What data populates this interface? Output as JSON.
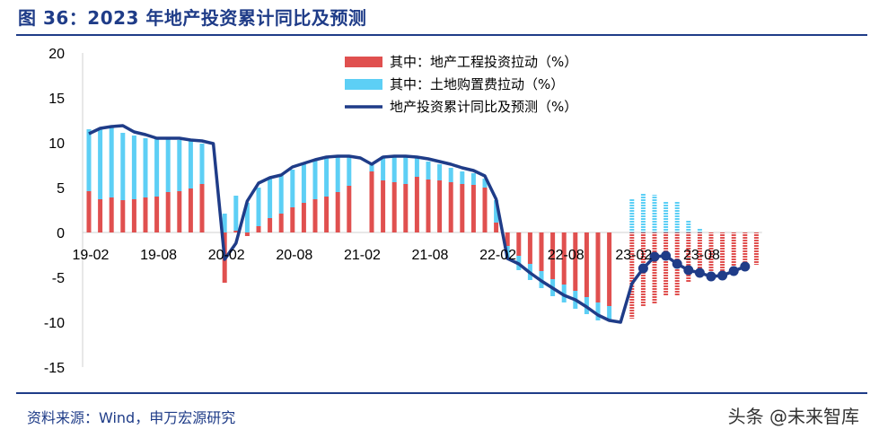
{
  "title": "图 36：2023 年地产投资累计同比及预测",
  "source": "资料来源：Wind，申万宏源研究",
  "watermark": "头条 @未来智库",
  "colors": {
    "construction": "#e0504f",
    "land": "#5dcff5",
    "line": "#1f3c88",
    "axis": "#d0d0d0"
  },
  "chart_data": {
    "type": "bar",
    "stacked": true,
    "ylim": [
      -15,
      20
    ],
    "yticks": [
      "20",
      "15",
      "10",
      "5",
      "0",
      "-5",
      "-10",
      "-15"
    ],
    "x_tick_labels": [
      {
        "label": "19-02",
        "index": 0
      },
      {
        "label": "19-08",
        "index": 6
      },
      {
        "label": "20-02",
        "index": 12
      },
      {
        "label": "20-08",
        "index": 18
      },
      {
        "label": "21-02",
        "index": 24
      },
      {
        "label": "21-08",
        "index": 30
      },
      {
        "label": "22-02",
        "index": 36
      },
      {
        "label": "22-08",
        "index": 42
      },
      {
        "label": "23-02",
        "index": 48
      },
      {
        "label": "23-08",
        "index": 54
      }
    ],
    "forecast_start_index": 48,
    "legend_position": "top-center",
    "series": [
      {
        "name": "其中：地产工程投资拉动（%）",
        "kind": "bar",
        "values": [
          4.6,
          3.7,
          3.9,
          3.6,
          3.7,
          3.9,
          4.0,
          4.5,
          4.6,
          4.9,
          5.4,
          null,
          -5.6,
          0.2,
          -0.4,
          0.7,
          1.6,
          2.1,
          2.8,
          3.3,
          3.7,
          4.0,
          4.5,
          5.2,
          null,
          6.8,
          5.8,
          5.6,
          5.4,
          6.2,
          5.9,
          5.8,
          5.6,
          5.4,
          5.3,
          5.0,
          1.1,
          -1.5,
          -2.6,
          -3.5,
          -4.3,
          -5.2,
          -5.8,
          -6.5,
          -7.2,
          -7.8,
          -8.2,
          null,
          -9.6,
          -8.3,
          -8.0,
          -7.0,
          -7.0,
          -5.5,
          -5.0,
          -4.8,
          -4.6,
          -4.4,
          -4.0,
          -3.6
        ]
      },
      {
        "name": "其中：土地购置费拉动（%）",
        "kind": "bar",
        "values": [
          6.9,
          7.9,
          7.9,
          7.5,
          7.1,
          6.6,
          6.4,
          5.9,
          5.7,
          5.3,
          4.5,
          null,
          2.1,
          3.9,
          3.3,
          4.3,
          4.4,
          4.3,
          4.2,
          4.4,
          4.5,
          4.4,
          4.0,
          3.3,
          null,
          0.8,
          2.7,
          2.9,
          3.1,
          2.2,
          2.0,
          1.8,
          1.6,
          1.4,
          1.3,
          1.0,
          2.5,
          -1.4,
          -1.6,
          -1.8,
          -1.9,
          -1.9,
          -2.0,
          -2.0,
          -1.9,
          -2.0,
          -1.7,
          null,
          3.8,
          4.3,
          4.2,
          3.5,
          3.4,
          1.3,
          0.5,
          -0.2,
          -0.1,
          0.0,
          0.0,
          0.0
        ]
      },
      {
        "name": "地产投资累计同比及预测（%）",
        "kind": "line",
        "values": [
          11.0,
          11.6,
          11.8,
          11.9,
          11.2,
          10.9,
          10.5,
          10.5,
          10.5,
          10.3,
          10.2,
          9.9,
          -3.0,
          -1.2,
          3.5,
          5.5,
          6.1,
          6.4,
          7.3,
          7.7,
          8.1,
          8.4,
          8.5,
          8.5,
          8.3,
          7.6,
          8.4,
          8.5,
          8.5,
          8.4,
          8.2,
          7.9,
          7.6,
          7.2,
          6.9,
          6.3,
          3.7,
          -2.9,
          -3.5,
          -4.5,
          -5.4,
          -6.2,
          -7.0,
          -7.5,
          -8.3,
          -9.2,
          -9.8,
          -10.0,
          -5.7,
          -4.0,
          -2.7,
          -2.6,
          -3.5,
          -4.2,
          -4.5,
          -4.9,
          -4.8,
          -4.3,
          -3.8
        ]
      }
    ]
  }
}
